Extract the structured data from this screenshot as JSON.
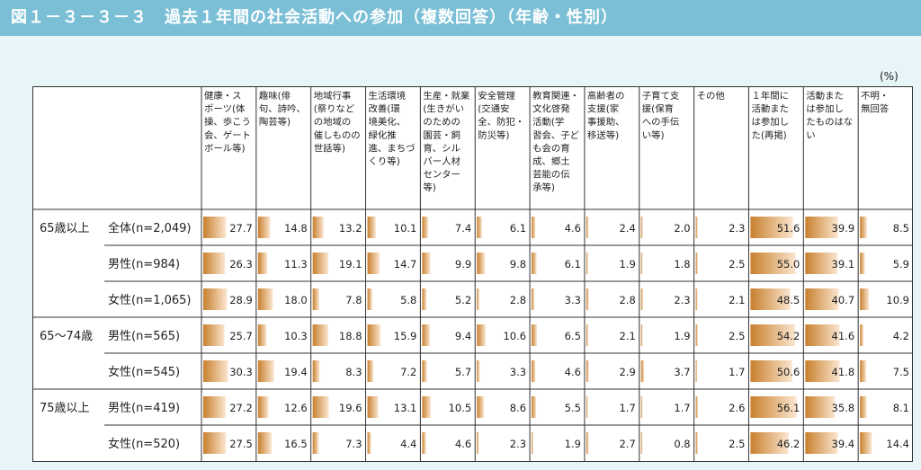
{
  "title": "図１－３－３－３　過去１年間の社会活動への参加（複数回答）（年齢・性別）",
  "unit": "(%)",
  "colors": {
    "header_bg": "#7bbfd6",
    "page_bg": "#e7f4f8",
    "bar_dark": "#c8802e",
    "bar_light": "#fbe6cf",
    "border": "#333333"
  },
  "chart_data": {
    "type": "table",
    "title": "図１－３－３－３　過去１年間の社会活動への参加（複数回答）（年齢・性別）",
    "unit": "(%)",
    "columns": [
      {
        "label": [
          "健康・ス",
          "ポーツ(体",
          "操、歩こう",
          "会、ゲート",
          "ボール等)"
        ]
      },
      {
        "label": [
          "趣味(俳",
          "句、詩吟、",
          "陶芸等)"
        ]
      },
      {
        "label": [
          "地域行事",
          "(祭りなど",
          "の地域の",
          "催しものの",
          "世話等)"
        ]
      },
      {
        "label": [
          "生活環境",
          "改善(環",
          "境美化、",
          "緑化推",
          "進、まちづ",
          "くり等)"
        ]
      },
      {
        "label": [
          "生産・就業",
          "(生きがい",
          "のための",
          "園芸・飼",
          "育、シル",
          "バー人材",
          "センター",
          "等)"
        ]
      },
      {
        "label": [
          "安全管理",
          "(交通安",
          "全、防犯・",
          "防災等)"
        ]
      },
      {
        "label": [
          "教育関連・",
          "文化啓発",
          "活動(学",
          "習会、子ど",
          "も会の育",
          "成、郷土",
          "芸能の伝",
          "承等)"
        ]
      },
      {
        "label": [
          "高齢者の",
          "支援(家",
          "事援助、",
          "移送等)"
        ]
      },
      {
        "label": [
          "子育て支",
          "援(保育",
          "への手伝",
          "い等)"
        ]
      },
      {
        "label": [
          "その他"
        ]
      },
      {
        "label": [
          "１年間に",
          "活動また",
          "は参加し",
          "た(再掲)"
        ]
      },
      {
        "label": [
          "活動また",
          "は参加し",
          "たものはな",
          "い"
        ]
      },
      {
        "label": [
          "不明・",
          "無回答"
        ]
      }
    ],
    "max_value": 60,
    "groups": [
      {
        "label": "65歳以上",
        "rows": [
          {
            "label": "全体(n=2,049)",
            "values": [
              27.7,
              14.8,
              13.2,
              10.1,
              7.4,
              6.1,
              4.6,
              2.4,
              2.0,
              2.3,
              51.6,
              39.9,
              8.5
            ]
          },
          {
            "label": "男性(n=984)",
            "values": [
              26.3,
              11.3,
              19.1,
              14.7,
              9.9,
              9.8,
              6.1,
              1.9,
              1.8,
              2.5,
              55.0,
              39.1,
              5.9
            ]
          },
          {
            "label": "女性(n=1,065)",
            "values": [
              28.9,
              18.0,
              7.8,
              5.8,
              5.2,
              2.8,
              3.3,
              2.8,
              2.3,
              2.1,
              48.5,
              40.7,
              10.9
            ]
          }
        ]
      },
      {
        "label": "65～74歳",
        "rows": [
          {
            "label": "男性(n=565)",
            "values": [
              25.7,
              10.3,
              18.8,
              15.9,
              9.4,
              10.6,
              6.5,
              2.1,
              1.9,
              2.5,
              54.2,
              41.6,
              4.2
            ]
          },
          {
            "label": "女性(n=545)",
            "values": [
              30.3,
              19.4,
              8.3,
              7.2,
              5.7,
              3.3,
              4.6,
              2.9,
              3.7,
              1.7,
              50.6,
              41.8,
              7.5
            ]
          }
        ]
      },
      {
        "label": "75歳以上",
        "rows": [
          {
            "label": "男性(n=419)",
            "values": [
              27.2,
              12.6,
              19.6,
              13.1,
              10.5,
              8.6,
              5.5,
              1.7,
              1.7,
              2.6,
              56.1,
              35.8,
              8.1
            ]
          },
          {
            "label": "女性(n=520)",
            "values": [
              27.5,
              16.5,
              7.3,
              4.4,
              4.6,
              2.3,
              1.9,
              2.7,
              0.8,
              2.5,
              46.2,
              39.4,
              14.4
            ]
          }
        ]
      }
    ]
  }
}
